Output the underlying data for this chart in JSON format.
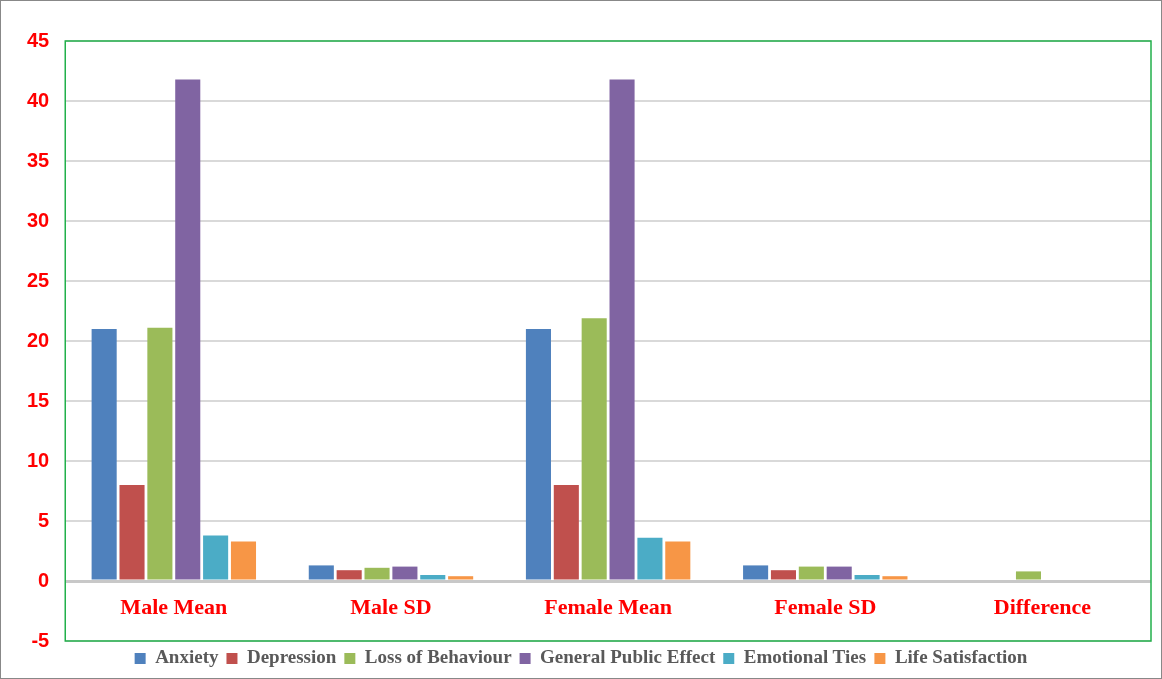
{
  "chart_data": {
    "type": "bar",
    "categories": [
      "Male Mean",
      "Male SD",
      "Female Mean",
      "Female SD",
      "Difference"
    ],
    "series": [
      {
        "name": "Anxiety",
        "color": "#4f81bd",
        "values": [
          21,
          1.3,
          21,
          1.3,
          0
        ]
      },
      {
        "name": "Depression",
        "color": "#c0504d",
        "values": [
          8,
          0.9,
          8,
          0.9,
          0
        ]
      },
      {
        "name": "Loss of Behaviour",
        "color": "#9bbb59",
        "values": [
          21.1,
          1.1,
          21.9,
          1.2,
          0.8
        ]
      },
      {
        "name": "General Public Effect",
        "color": "#8064a2",
        "values": [
          41.8,
          1.2,
          41.8,
          1.2,
          0
        ]
      },
      {
        "name": "Emotional Ties",
        "color": "#4bacc6",
        "values": [
          3.8,
          0.5,
          3.6,
          0.5,
          0
        ]
      },
      {
        "name": "Life Satisfaction",
        "color": "#f79646",
        "values": [
          3.3,
          0.4,
          3.3,
          0.4,
          0
        ]
      }
    ],
    "ylim": [
      -5,
      45
    ],
    "yticks": [
      -5,
      0,
      5,
      10,
      15,
      20,
      25,
      30,
      35,
      40,
      45
    ],
    "grid": "y",
    "legend": "bottom"
  }
}
